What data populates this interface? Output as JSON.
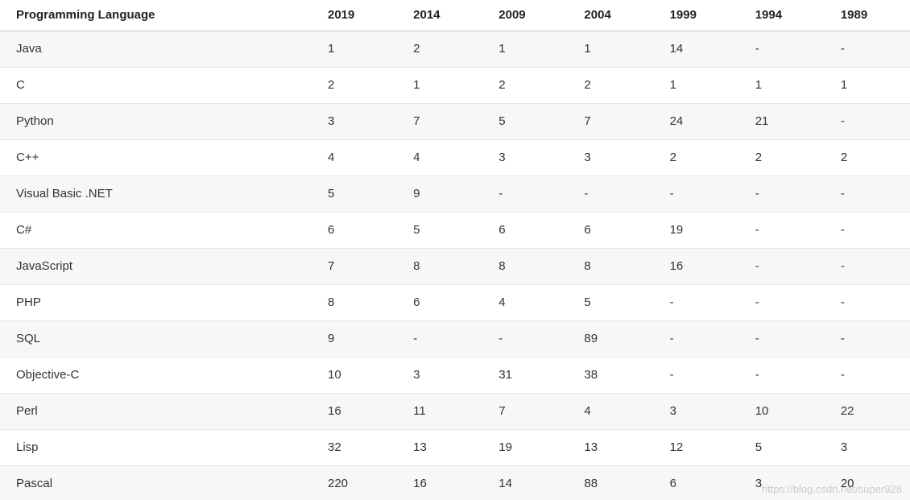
{
  "watermark": "https://blog.csdn.net/super928",
  "colors": {
    "stripe_row": "#f7f7f7",
    "row_border": "#e6e6e6",
    "header_border": "#c9c9c9",
    "header_text": "#222222",
    "cell_text": "#333333",
    "background": "#ffffff"
  },
  "chart_data": {
    "type": "table",
    "title": "Programming language rankings by year",
    "columns": [
      "Programming Language",
      "2019",
      "2014",
      "2009",
      "2004",
      "1999",
      "1994",
      "1989"
    ],
    "rows": [
      [
        "Java",
        "1",
        "2",
        "1",
        "1",
        "14",
        "-",
        "-"
      ],
      [
        "C",
        "2",
        "1",
        "2",
        "2",
        "1",
        "1",
        "1"
      ],
      [
        "Python",
        "3",
        "7",
        "5",
        "7",
        "24",
        "21",
        "-"
      ],
      [
        "C++",
        "4",
        "4",
        "3",
        "3",
        "2",
        "2",
        "2"
      ],
      [
        "Visual Basic .NET",
        "5",
        "9",
        "-",
        "-",
        "-",
        "-",
        "-"
      ],
      [
        "C#",
        "6",
        "5",
        "6",
        "6",
        "19",
        "-",
        "-"
      ],
      [
        "JavaScript",
        "7",
        "8",
        "8",
        "8",
        "16",
        "-",
        "-"
      ],
      [
        "PHP",
        "8",
        "6",
        "4",
        "5",
        "-",
        "-",
        "-"
      ],
      [
        "SQL",
        "9",
        "-",
        "-",
        "89",
        "-",
        "-",
        "-"
      ],
      [
        "Objective-C",
        "10",
        "3",
        "31",
        "38",
        "-",
        "-",
        "-"
      ],
      [
        "Perl",
        "16",
        "11",
        "7",
        "4",
        "3",
        "10",
        "22"
      ],
      [
        "Lisp",
        "32",
        "13",
        "19",
        "13",
        "12",
        "5",
        "3"
      ],
      [
        "Pascal",
        "220",
        "16",
        "14",
        "88",
        "6",
        "3",
        "20"
      ]
    ]
  }
}
